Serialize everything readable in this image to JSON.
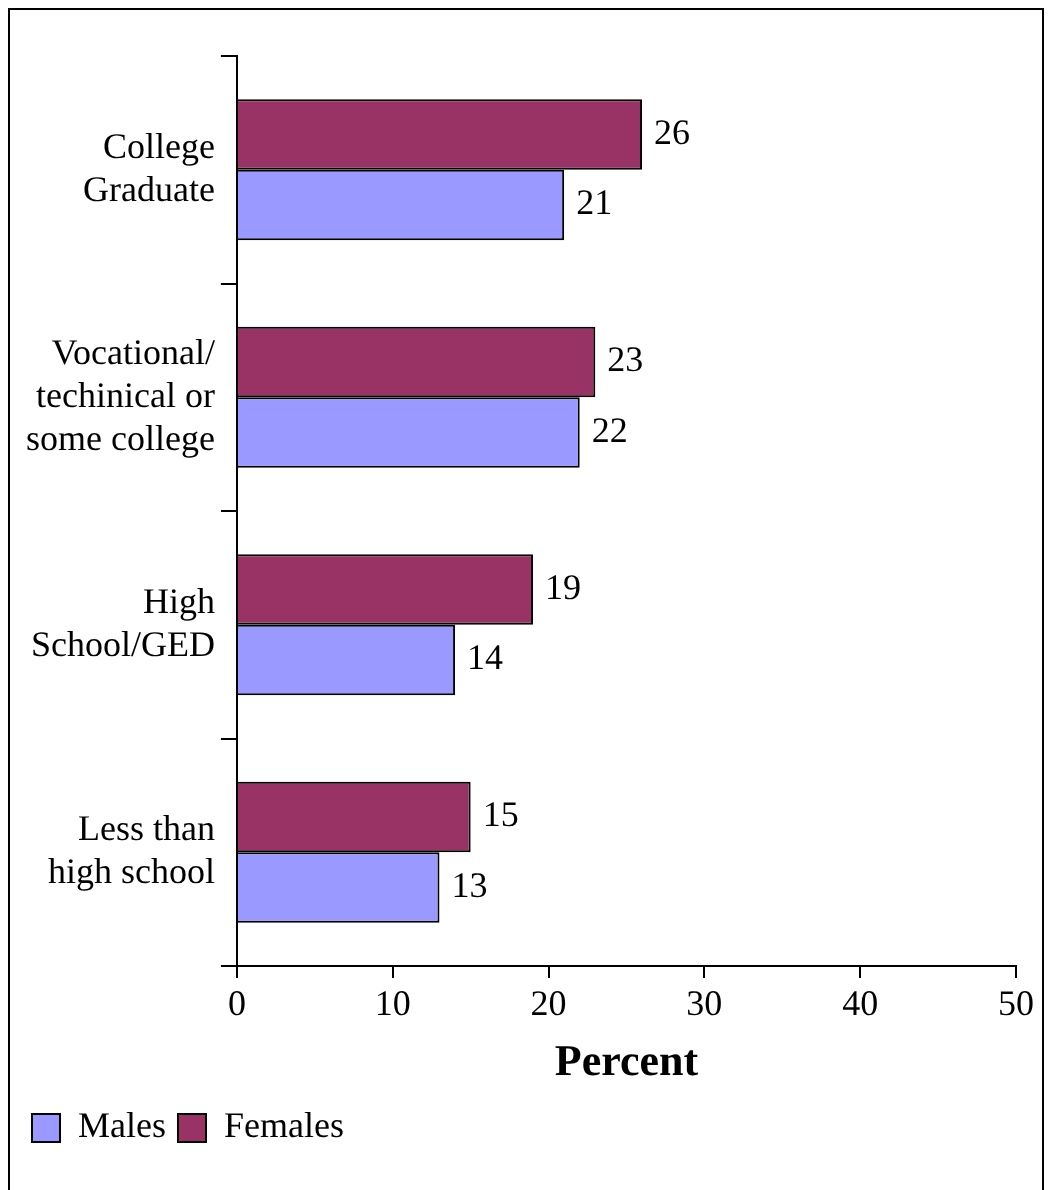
{
  "chart_data": {
    "type": "bar",
    "orientation": "horizontal",
    "xlabel": "Percent",
    "categories": [
      "College Graduate",
      "Vocational/ techinical or some college",
      "High School/GED",
      "Less than high school"
    ],
    "series": [
      {
        "name": "Females",
        "color": "#993366",
        "values": [
          26,
          23,
          19,
          15
        ]
      },
      {
        "name": "Males",
        "color": "#9999ff",
        "values": [
          21,
          22,
          14,
          13
        ]
      }
    ],
    "xlim": [
      0,
      50
    ],
    "xticks": [
      0,
      10,
      20,
      30,
      40,
      50
    ],
    "grid": false,
    "legend": "bottom",
    "data_labels": true
  }
}
